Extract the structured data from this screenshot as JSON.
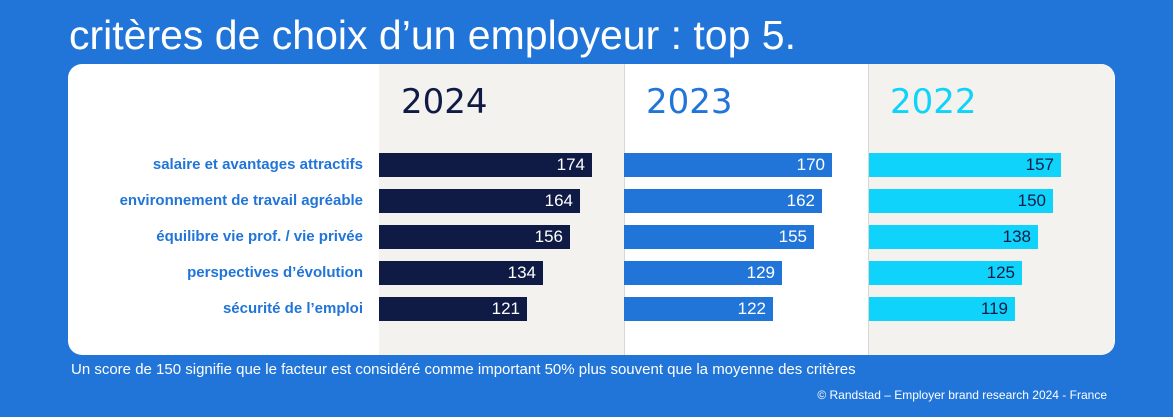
{
  "title": "critères de choix d’un employeur : top 5.",
  "footnote": "Un score de 150 signifie que le facteur est considéré comme important 50% plus souvent que la moyenne des critères",
  "credit": "© Randstad – Employer brand research 2024 - France",
  "colors": {
    "background": "#2175d9",
    "label": "#2175d9",
    "year_2024": "#101b45",
    "year_2023": "#2175d9",
    "year_2022": "#0fd3fa"
  },
  "chart_data": {
    "type": "bar",
    "orientation": "horizontal",
    "categories": [
      "salaire et avantages attractifs",
      "environnement de travail agréable",
      "équilibre vie prof. / vie privée",
      "perspectives d’évolution",
      "sécurité de l’emploi"
    ],
    "series": [
      {
        "name": "2024",
        "color": "#101b45",
        "value_color": "#ffffff",
        "values": [
          174,
          164,
          156,
          134,
          121
        ]
      },
      {
        "name": "2023",
        "color": "#2175d9",
        "value_color": "#ffffff",
        "values": [
          170,
          162,
          155,
          129,
          122
        ]
      },
      {
        "name": "2022",
        "color": "#0fd3fa",
        "value_color": "#101b45",
        "values": [
          157,
          150,
          138,
          125,
          119
        ]
      }
    ],
    "xlim": [
      0,
      250
    ],
    "grid": false,
    "legend": "none"
  }
}
